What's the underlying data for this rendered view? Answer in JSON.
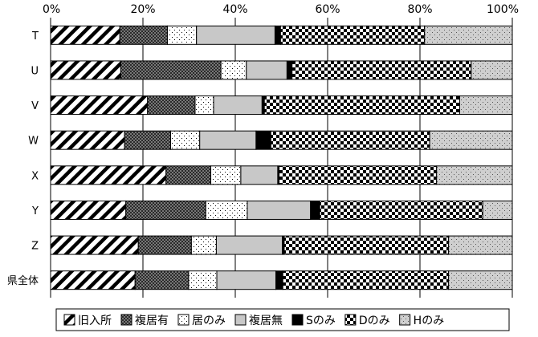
{
  "chart_data": {
    "type": "bar",
    "stacked": true,
    "orientation": "horizontal",
    "percent_stacked": true,
    "x_ticks": [
      "0%",
      "20%",
      "40%",
      "60%",
      "80%",
      "100%"
    ],
    "xlim": [
      0,
      100
    ],
    "categories": [
      "T",
      "U",
      "V",
      "W",
      "X",
      "Y",
      "Z",
      "県全体"
    ],
    "series": [
      {
        "name": "旧入所",
        "pattern": "diagonal",
        "values": [
          15,
          15.2,
          21,
          16,
          25,
          16.3,
          19,
          18.3
        ]
      },
      {
        "name": "複居有",
        "pattern": "dense-check",
        "values": [
          10.3,
          21.7,
          10.3,
          10,
          9.7,
          17.3,
          11.5,
          11.6
        ]
      },
      {
        "name": "居のみ",
        "pattern": "sparse-dots",
        "values": [
          6.3,
          5.5,
          4,
          6.3,
          6.5,
          9,
          5.4,
          6.1
        ]
      },
      {
        "name": "複居無",
        "pattern": "gray",
        "values": [
          17,
          8.8,
          10.5,
          12.2,
          8,
          13.7,
          14.3,
          12.8
        ]
      },
      {
        "name": "Sのみ",
        "pattern": "black",
        "values": [
          1.2,
          1.1,
          0.5,
          3.2,
          0.3,
          2,
          0.4,
          1.5
        ]
      },
      {
        "name": "Dのみ",
        "pattern": "checker",
        "values": [
          31.2,
          38.8,
          42.3,
          34.4,
          34.1,
          35.3,
          35.6,
          35.9
        ]
      },
      {
        "name": "Hのみ",
        "pattern": "dotted-gray",
        "values": [
          19,
          8.9,
          11.4,
          17.9,
          16.4,
          6.4,
          13.8,
          13.8
        ]
      }
    ],
    "grid": true,
    "legend_position": "bottom"
  }
}
